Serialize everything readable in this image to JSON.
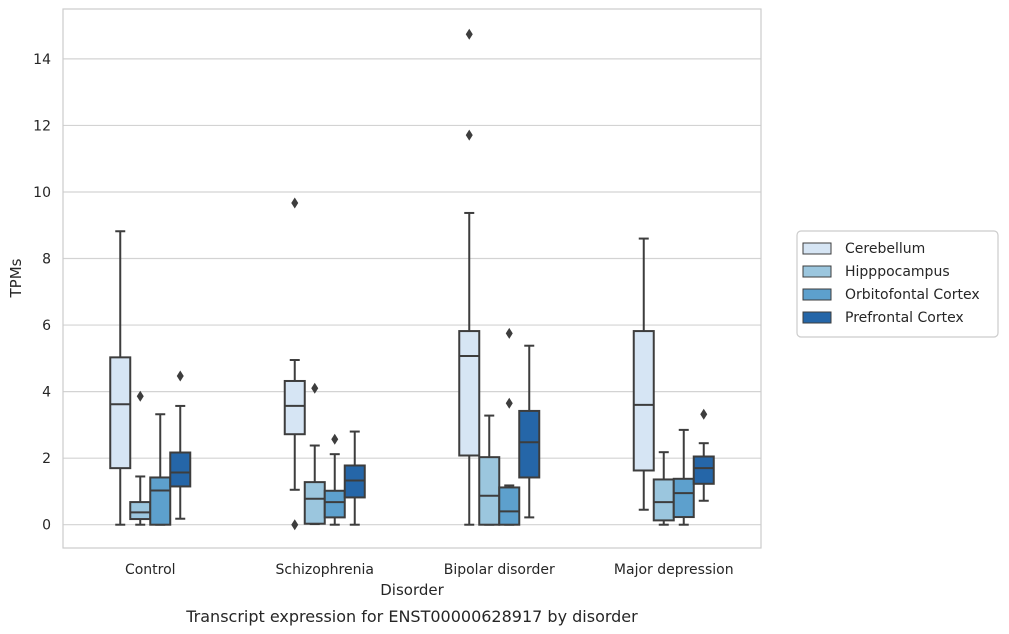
{
  "chart_data": {
    "type": "box",
    "title": "",
    "caption": "Transcript expression for ENST00000628917 by disorder",
    "xlabel": "Disorder",
    "ylabel": "TPMs",
    "ylim": [
      -0.7,
      15.5
    ],
    "yticks": [
      0,
      2,
      4,
      6,
      8,
      10,
      12,
      14
    ],
    "grid": "horizontal",
    "legend_position": "right",
    "categories": [
      "Control",
      "Schizophrenia",
      "Bipolar disorder",
      "Major depression"
    ],
    "series": [
      {
        "name": "Cerebellum",
        "color": "#d6e5f4",
        "boxes": [
          {
            "whisker_low": 0.0,
            "q1": 1.7,
            "median": 3.62,
            "q3": 5.03,
            "whisker_high": 8.82,
            "outliers": []
          },
          {
            "whisker_low": 1.05,
            "q1": 2.72,
            "median": 3.57,
            "q3": 4.32,
            "whisker_high": 4.95,
            "outliers": [
              9.67,
              0.0
            ]
          },
          {
            "whisker_low": 0.0,
            "q1": 2.08,
            "median": 5.07,
            "q3": 5.82,
            "whisker_high": 9.37,
            "outliers": [
              14.74,
              11.71
            ]
          },
          {
            "whisker_low": 0.45,
            "q1": 1.63,
            "median": 3.6,
            "q3": 5.82,
            "whisker_high": 8.6,
            "outliers": []
          }
        ]
      },
      {
        "name": "Hipppocampus",
        "color": "#9bc6de",
        "boxes": [
          {
            "whisker_low": 0.0,
            "q1": 0.17,
            "median": 0.37,
            "q3": 0.68,
            "whisker_high": 1.45,
            "outliers": [
              3.86
            ]
          },
          {
            "whisker_low": 0.02,
            "q1": 0.03,
            "median": 0.78,
            "q3": 1.28,
            "whisker_high": 2.38,
            "outliers": [
              4.1
            ]
          },
          {
            "whisker_low": 0.0,
            "q1": 0.0,
            "median": 0.87,
            "q3": 2.03,
            "whisker_high": 3.28,
            "outliers": []
          },
          {
            "whisker_low": 0.0,
            "q1": 0.13,
            "median": 0.68,
            "q3": 1.36,
            "whisker_high": 2.18,
            "outliers": []
          }
        ]
      },
      {
        "name": "Orbitofontal Cortex",
        "color": "#5da0cd",
        "boxes": [
          {
            "whisker_low": 0.0,
            "q1": 0.0,
            "median": 1.03,
            "q3": 1.42,
            "whisker_high": 3.32,
            "outliers": []
          },
          {
            "whisker_low": 0.0,
            "q1": 0.22,
            "median": 0.68,
            "q3": 1.02,
            "whisker_high": 2.12,
            "outliers": [
              2.57
            ]
          },
          {
            "whisker_low": 0.0,
            "q1": 0.0,
            "median": 0.4,
            "q3": 1.12,
            "whisker_high": 1.18,
            "outliers": [
              5.75,
              3.65
            ]
          },
          {
            "whisker_low": 0.0,
            "q1": 0.23,
            "median": 0.95,
            "q3": 1.38,
            "whisker_high": 2.85,
            "outliers": []
          }
        ]
      },
      {
        "name": "Prefrontal Cortex",
        "color": "#2566a8",
        "boxes": [
          {
            "whisker_low": 0.18,
            "q1": 1.15,
            "median": 1.57,
            "q3": 2.17,
            "whisker_high": 3.57,
            "outliers": [
              4.47
            ]
          },
          {
            "whisker_low": 0.0,
            "q1": 0.82,
            "median": 1.33,
            "q3": 1.78,
            "whisker_high": 2.8,
            "outliers": []
          },
          {
            "whisker_low": 0.22,
            "q1": 1.42,
            "median": 2.48,
            "q3": 3.42,
            "whisker_high": 5.38,
            "outliers": []
          },
          {
            "whisker_low": 0.72,
            "q1": 1.23,
            "median": 1.7,
            "q3": 2.05,
            "whisker_high": 2.45,
            "outliers": [
              3.32
            ]
          }
        ]
      }
    ]
  }
}
